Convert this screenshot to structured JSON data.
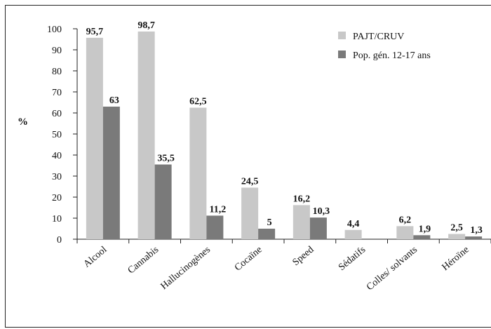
{
  "chart_data": {
    "type": "bar",
    "ylabel": "%",
    "ylim": [
      0,
      100
    ],
    "yticks": [
      0,
      10,
      20,
      30,
      40,
      50,
      60,
      70,
      80,
      90,
      100
    ],
    "categories": [
      "Alcool",
      "Cannabis",
      "Hallucinogènes",
      "Cocaïne",
      "Speed",
      "Sédatifs",
      "Colles/ solvants",
      "Héroïne"
    ],
    "series": [
      {
        "name": "PAJT/CRUV",
        "color": "#c8c8c8",
        "values": [
          95.7,
          98.7,
          62.5,
          24.5,
          16.2,
          4.4,
          6.2,
          2.5
        ],
        "labels": [
          "95,7",
          "98,7",
          "62,5",
          "24,5",
          "16,2",
          "4,4",
          "6,2",
          "2,5"
        ]
      },
      {
        "name": "Pop. gén. 12-17 ans",
        "color": "#7a7a7a",
        "values": [
          63,
          35.5,
          11.2,
          5,
          10.3,
          null,
          1.9,
          1.3
        ],
        "labels": [
          "63",
          "35,5",
          "11,2",
          "5",
          "10,3",
          "",
          "1,9",
          "1,3"
        ]
      }
    ],
    "legend_position": "top-right",
    "grid": false
  }
}
